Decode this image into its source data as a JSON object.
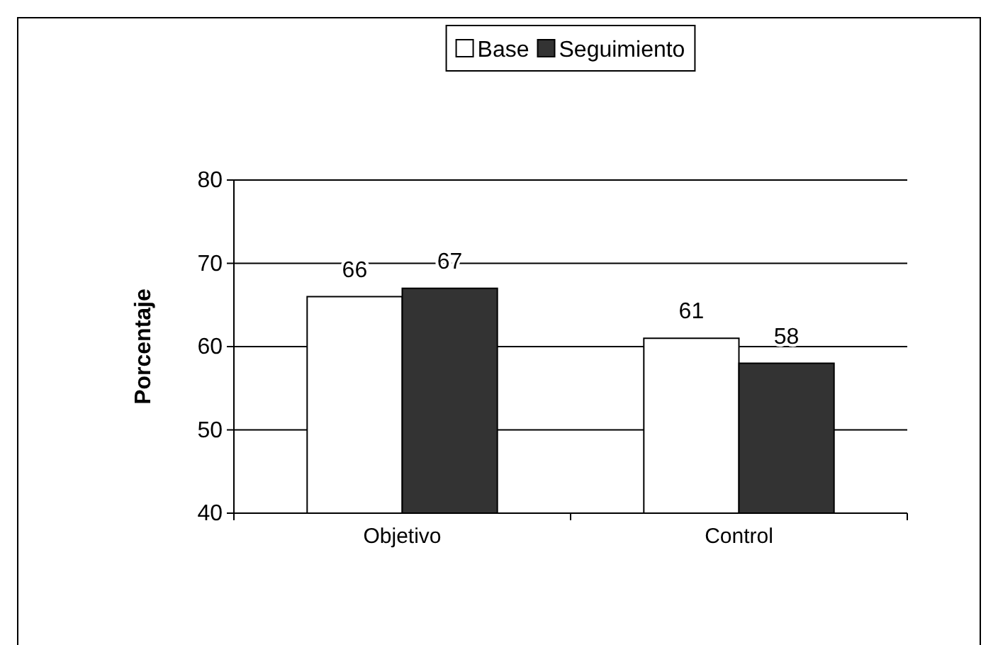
{
  "chart_data": {
    "type": "bar",
    "ylabel": "Porcentaje",
    "categories": [
      "Objetivo",
      "Control"
    ],
    "series": [
      {
        "name": "Base",
        "color": "#ffffff",
        "values": [
          66,
          61
        ]
      },
      {
        "name": "Seguimiento",
        "color": "#333333",
        "values": [
          67,
          58
        ]
      }
    ],
    "ylim": [
      40,
      80
    ],
    "yticks": [
      40,
      50,
      60,
      70,
      80
    ],
    "grid": "y",
    "legend": "top",
    "data_labels": true
  }
}
